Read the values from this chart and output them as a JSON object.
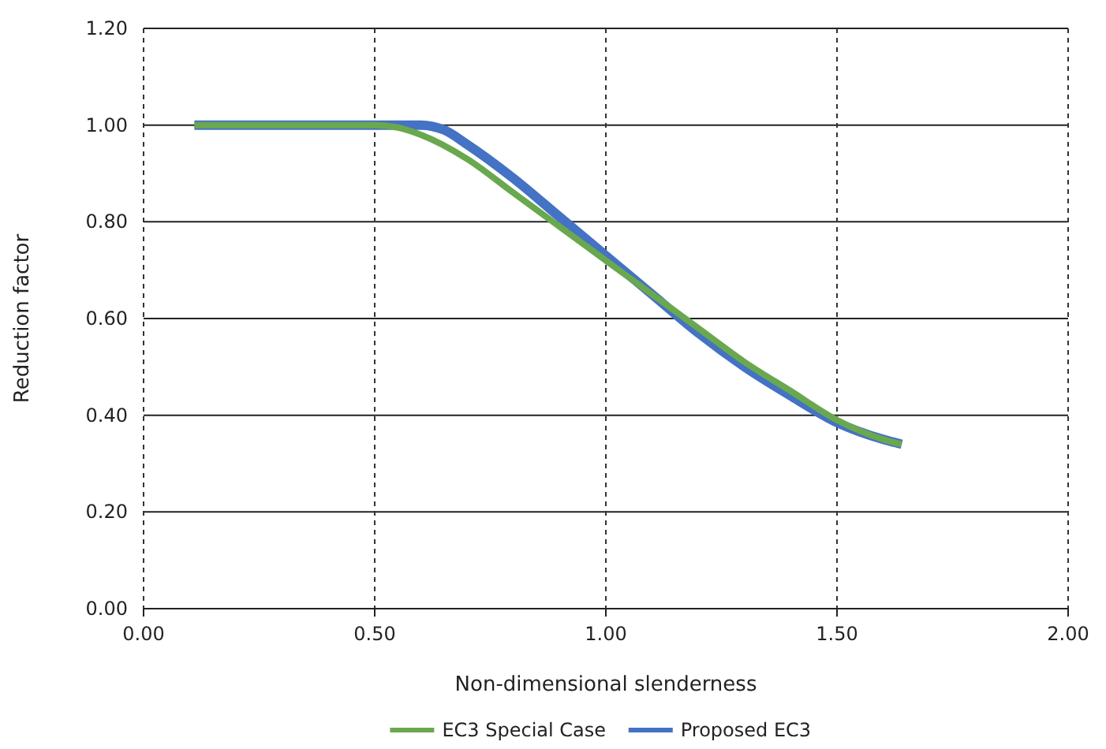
{
  "chart_data": {
    "type": "line",
    "xlabel": "Non-dimensional slenderness",
    "ylabel": "Reduction factor",
    "xlim": [
      0,
      2
    ],
    "xticks": [
      {
        "value": 0,
        "label": "0.00"
      },
      {
        "value": 0.5,
        "label": "0.50"
      },
      {
        "value": 1,
        "label": "1.00"
      },
      {
        "value": 1.5,
        "label": "1.50"
      },
      {
        "value": 2,
        "label": "2.00"
      }
    ],
    "ylim": [
      0,
      1.2
    ],
    "yticks": [
      {
        "value": 0,
        "label": "0.00"
      },
      {
        "value": 0.2,
        "label": "0.20"
      },
      {
        "value": 0.4,
        "label": "0.40"
      },
      {
        "value": 0.6,
        "label": "0.60"
      },
      {
        "value": 0.8,
        "label": "0.80"
      },
      {
        "value": 1,
        "label": "1.00"
      },
      {
        "value": 1.2,
        "label": "1.20"
      }
    ],
    "grid": true,
    "legend": "bottom",
    "marker": "none",
    "line_style": "solid",
    "series": [
      {
        "name": "EC3 Special Case",
        "color": "#6aa84f",
        "x": [
          0.11,
          0.3,
          0.5,
          0.55,
          0.6,
          0.7,
          0.8,
          0.9,
          1.0,
          1.1,
          1.2,
          1.3,
          1.4,
          1.5,
          1.6,
          1.64
        ],
        "values": [
          1.0,
          1.0,
          1.0,
          0.995,
          0.98,
          0.93,
          0.86,
          0.79,
          0.72,
          0.65,
          0.58,
          0.51,
          0.45,
          0.39,
          0.35,
          0.34
        ]
      },
      {
        "name": "Proposed EC3",
        "color": "#4472c4",
        "x": [
          0.11,
          0.3,
          0.5,
          0.6,
          0.65,
          0.7,
          0.8,
          0.9,
          1.0,
          1.1,
          1.2,
          1.3,
          1.4,
          1.5,
          1.6,
          1.64
        ],
        "values": [
          1.0,
          1.0,
          1.0,
          1.0,
          0.99,
          0.96,
          0.89,
          0.81,
          0.73,
          0.65,
          0.57,
          0.5,
          0.44,
          0.385,
          0.35,
          0.34
        ]
      }
    ]
  }
}
